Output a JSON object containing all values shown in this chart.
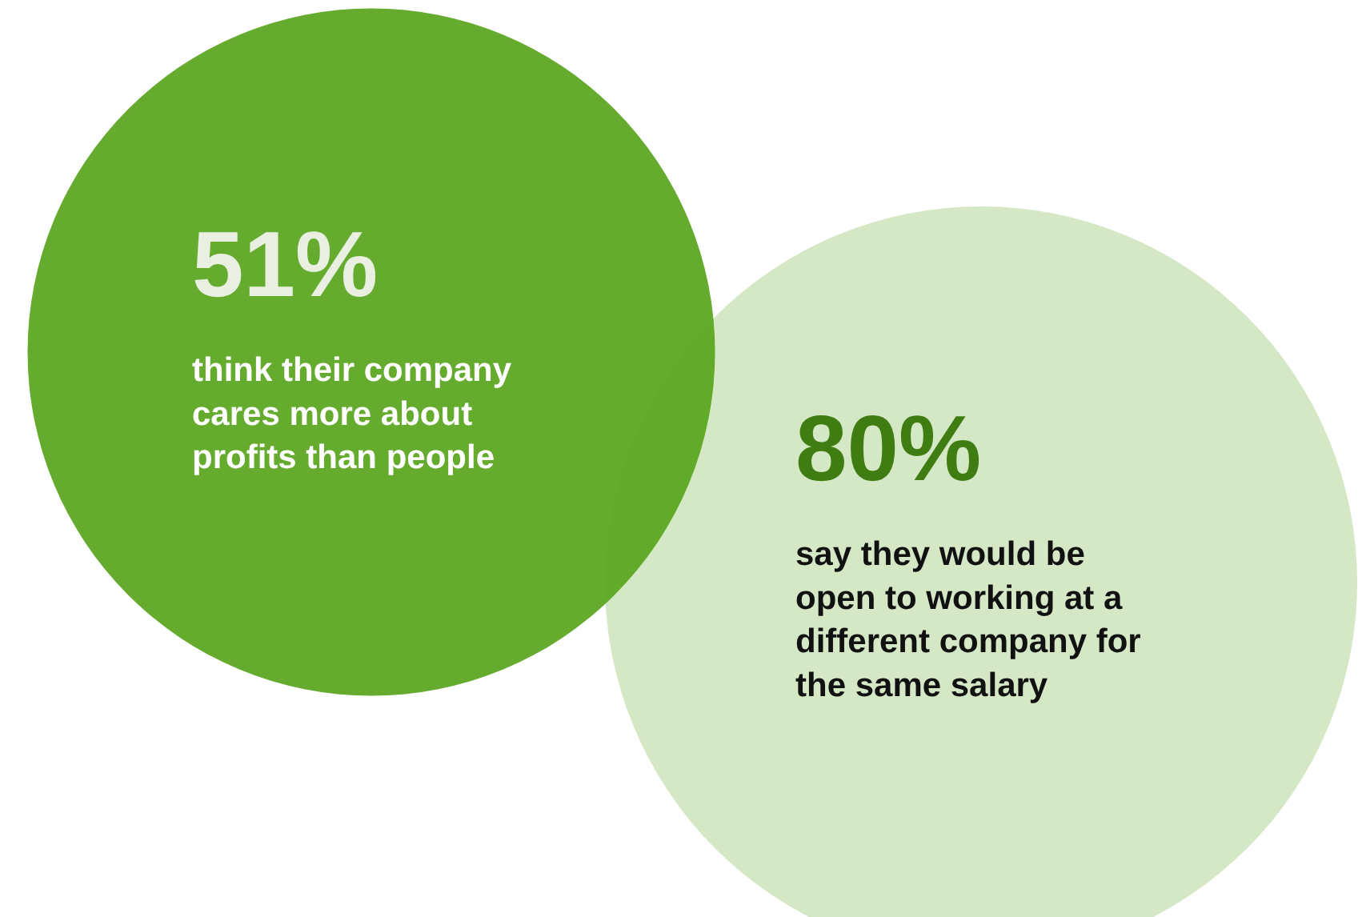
{
  "chart_data": {
    "type": "other",
    "categories": [
      "think their company cares more about profits than people",
      "say they would be open to working at a different company for the same salary"
    ],
    "values": [
      51,
      80
    ],
    "value_labels": [
      "51%",
      "80%"
    ],
    "colors": [
      "#58a51c",
      "#d5e8c6"
    ]
  }
}
